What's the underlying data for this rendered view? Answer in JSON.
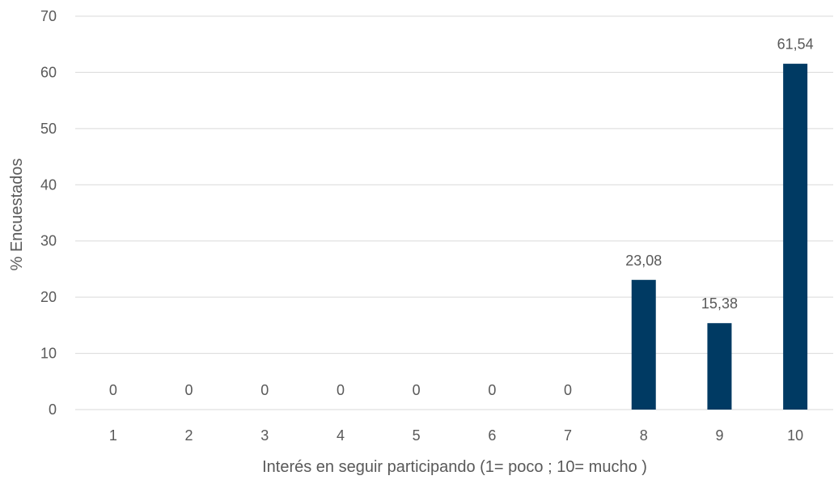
{
  "chart_data": {
    "type": "bar",
    "title": "",
    "xlabel": "Interés en seguir participando (1= poco ; 10= mucho )",
    "ylabel": "% Encuestados",
    "categories": [
      "1",
      "2",
      "3",
      "4",
      "5",
      "6",
      "7",
      "8",
      "9",
      "10"
    ],
    "values": [
      0,
      0,
      0,
      0,
      0,
      0,
      0,
      23.08,
      15.38,
      61.54
    ],
    "data_labels": [
      "0",
      "0",
      "0",
      "0",
      "0",
      "0",
      "0",
      "23,08",
      "15,38",
      "61,54"
    ],
    "yticks": [
      "0",
      "10",
      "20",
      "30",
      "40",
      "50",
      "60",
      "70"
    ],
    "ylim": [
      0,
      70
    ],
    "grid": true,
    "legend": "none",
    "colors": {
      "bar": "#003A63",
      "grid": "#D9D9D9",
      "text": "#595959"
    }
  }
}
